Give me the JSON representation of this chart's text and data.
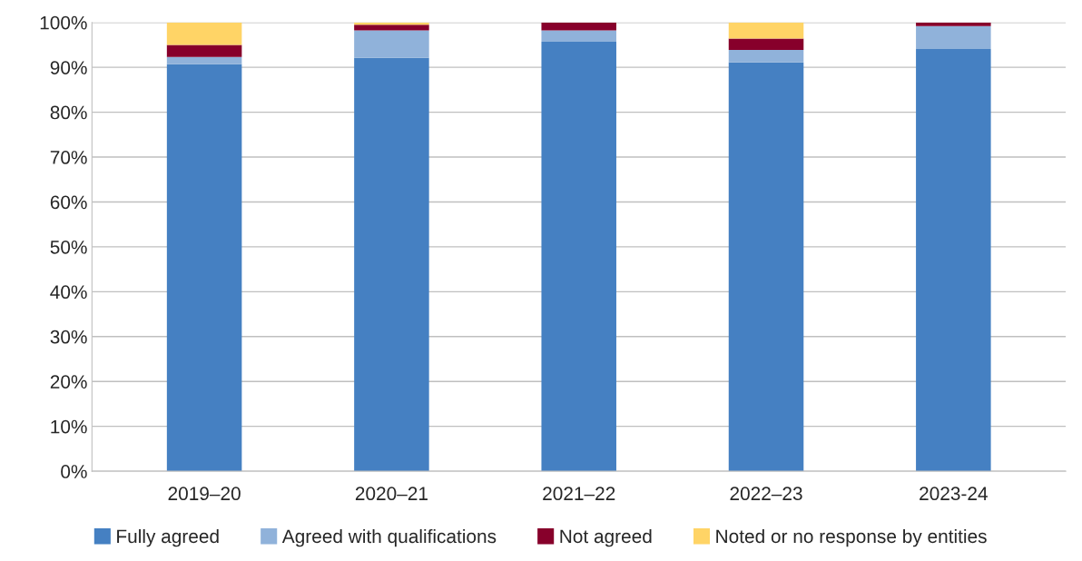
{
  "chart_data": {
    "type": "bar",
    "stacked": true,
    "categories": [
      "2019–20",
      "2020–21",
      "2021–22",
      "2022–23",
      "2023-24"
    ],
    "series": [
      {
        "name": "Fully agreed",
        "color": "#4580c2",
        "values": [
          90.7,
          92.1,
          95.7,
          91.1,
          94.1
        ]
      },
      {
        "name": "Agreed with qualifications",
        "color": "#90b2da",
        "values": [
          1.6,
          6.1,
          2.5,
          2.8,
          5.1
        ]
      },
      {
        "name": "Not agreed",
        "color": "#87002b",
        "values": [
          2.7,
          1.3,
          1.8,
          2.5,
          0.8
        ]
      },
      {
        "name": "Noted or no response by entities",
        "color": "#ffd466",
        "values": [
          5.0,
          0.5,
          0,
          3.6,
          0
        ]
      }
    ],
    "ylim": [
      0,
      100
    ],
    "yticks": [
      {
        "value": 0,
        "label": "0%"
      },
      {
        "value": 10,
        "label": "10%"
      },
      {
        "value": 20,
        "label": "20%"
      },
      {
        "value": 30,
        "label": "30%"
      },
      {
        "value": 40,
        "label": "40%"
      },
      {
        "value": 50,
        "label": "50%"
      },
      {
        "value": 60,
        "label": "60%"
      },
      {
        "value": 70,
        "label": "70%"
      },
      {
        "value": 80,
        "label": "80%"
      },
      {
        "value": 90,
        "label": "90%"
      },
      {
        "value": 100,
        "label": "100%"
      }
    ],
    "grid": "y",
    "legend": "bottom"
  }
}
